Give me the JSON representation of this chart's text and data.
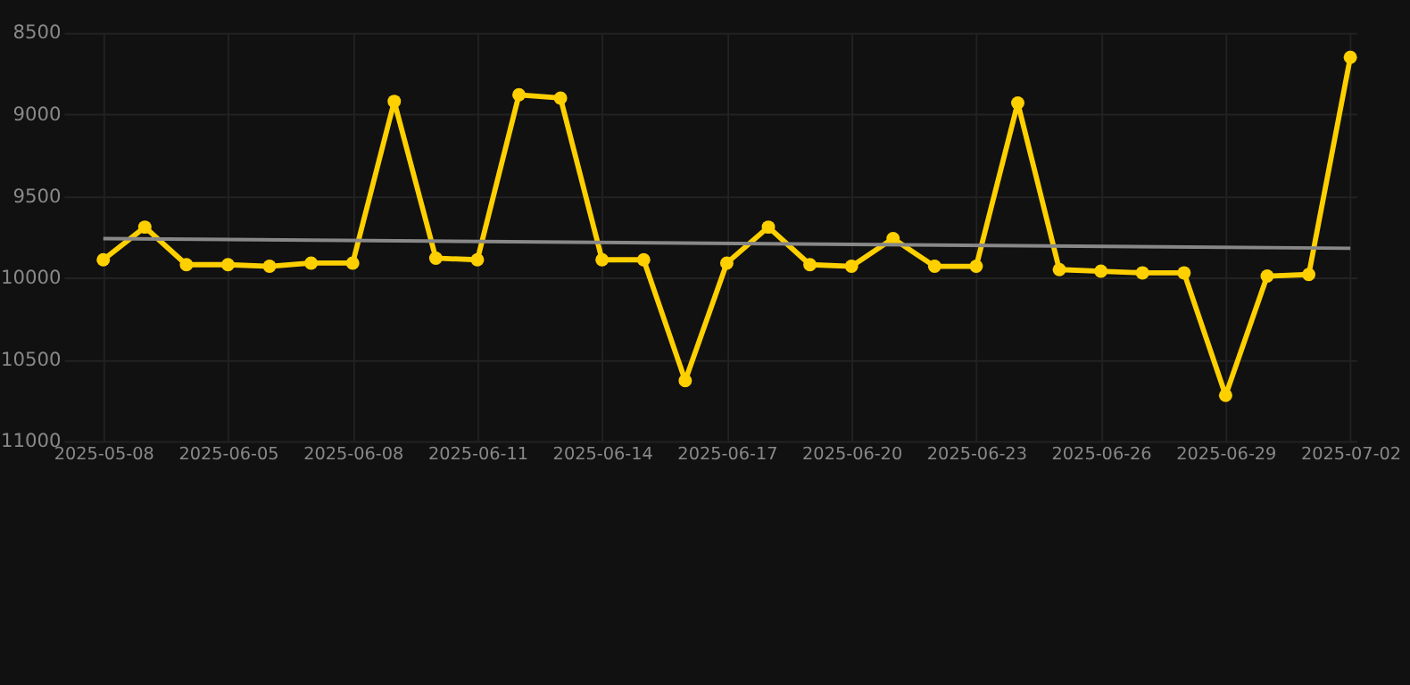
{
  "chart_data": {
    "type": "line",
    "categories": [
      "2025-05-08",
      null,
      null,
      "2025-06-05",
      null,
      null,
      "2025-06-08",
      null,
      null,
      "2025-06-11",
      null,
      null,
      "2025-06-14",
      null,
      null,
      "2025-06-17",
      null,
      null,
      "2025-06-20",
      null,
      null,
      "2025-06-23",
      null,
      null,
      "2025-06-26",
      null,
      null,
      "2025-06-29",
      null,
      null,
      "2025-07-02"
    ],
    "series": [
      {
        "color": "#ffd000",
        "marker": "circle",
        "values": [
          9890,
          9690,
          9920,
          9920,
          9930,
          9910,
          9910,
          8920,
          9880,
          9890,
          8880,
          8900,
          9890,
          9890,
          10630,
          9910,
          9690,
          9920,
          9930,
          9760,
          9930,
          9930,
          8930,
          9950,
          9960,
          9970,
          9970,
          10720,
          9990,
          9980,
          8650
        ]
      },
      {
        "color": "#888888",
        "marker": "none",
        "values": [
          9760,
          null,
          null,
          null,
          null,
          null,
          null,
          null,
          null,
          null,
          null,
          null,
          null,
          null,
          null,
          null,
          null,
          null,
          null,
          null,
          null,
          null,
          null,
          null,
          null,
          null,
          null,
          null,
          null,
          null,
          9820
        ]
      }
    ],
    "ylim": [
      11000,
      8500
    ],
    "yticks": [
      8500,
      9000,
      9500,
      10000,
      10500,
      11000
    ],
    "grid": true
  }
}
